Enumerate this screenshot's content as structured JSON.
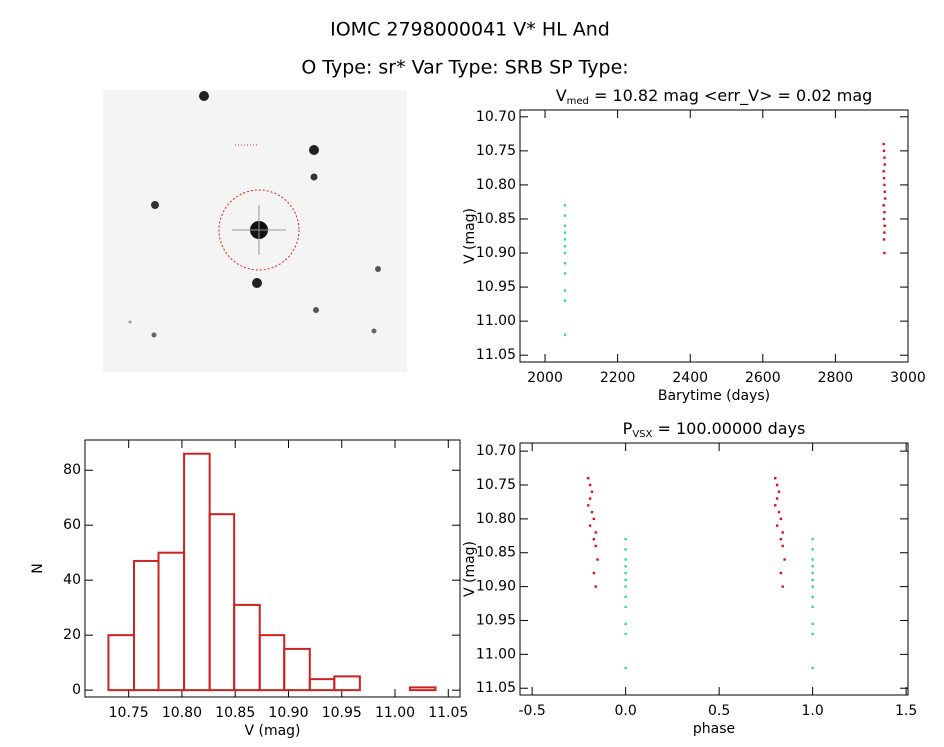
{
  "header": {
    "title": "IOMC 2798000041   V* HL And",
    "subtitle": "O Type: sr*  Var Type: SRB  SP Type:"
  },
  "chart_data": [
    {
      "type": "scatter",
      "title": [
        "V",
        "med",
        " = 10.82 mag <err_V> = 0.02 mag"
      ],
      "xlabel": "Barytime (days)",
      "ylabel": "V (mag)",
      "xlim": [
        1931,
        3000
      ],
      "xticks": [
        2000,
        2200,
        2400,
        2600,
        2800,
        3000
      ],
      "ylim": [
        11.06,
        10.69
      ],
      "yticks": [
        {
          "value": 10.7,
          "label": "10.70"
        },
        10.75,
        {
          "value": 10.8,
          "label": "10.80"
        },
        10.85,
        {
          "value": 10.9,
          "label": "10.90"
        },
        10.95,
        {
          "value": 11.0,
          "label": "11.00"
        },
        11.05
      ],
      "series": [
        {
          "color": "#33dd88",
          "x": [
            2055,
            2055,
            2055,
            2055,
            2055,
            2055,
            2055,
            2055,
            2055,
            2055,
            2055,
            2055
          ],
          "values": [
            10.83,
            10.845,
            10.86,
            10.87,
            10.88,
            10.89,
            10.9,
            10.915,
            10.93,
            10.955,
            10.97,
            11.02
          ]
        },
        {
          "color": "#dd1111",
          "x": [
            2933,
            2934,
            2935,
            2936,
            2933,
            2934,
            2935,
            2936,
            2937,
            2933,
            2935,
            2934,
            2936,
            2935,
            2934,
            2935
          ],
          "values": [
            10.74,
            10.75,
            10.76,
            10.77,
            10.78,
            10.79,
            10.8,
            10.81,
            10.82,
            10.83,
            10.84,
            10.85,
            10.86,
            10.87,
            10.88,
            10.9
          ]
        }
      ]
    },
    {
      "type": "scatter",
      "title": [
        "P",
        "VSX",
        " = 100.00000 days"
      ],
      "xlabel": "phase",
      "ylabel": "V (mag)",
      "xlim": [
        -0.565,
        1.51
      ],
      "xticks": [
        -0.5,
        {
          "value": 0.0,
          "label": "0.0"
        },
        0.5,
        {
          "value": 1.0,
          "label": "1.0"
        },
        1.5
      ],
      "ylim": [
        11.06,
        10.688
      ],
      "yticks": [
        {
          "value": 10.7,
          "label": "10.70"
        },
        10.75,
        {
          "value": 10.8,
          "label": "10.80"
        },
        10.85,
        {
          "value": 10.9,
          "label": "10.90"
        },
        10.95,
        {
          "value": 11.0,
          "label": "11.00"
        },
        11.05
      ],
      "series": [
        {
          "color": "#33dd88",
          "x": [
            0,
            0,
            0,
            0,
            0,
            0,
            0,
            0,
            0,
            0,
            0,
            0,
            1,
            1,
            1,
            1,
            1,
            1,
            1,
            1,
            1,
            1,
            1,
            1
          ],
          "values": [
            10.83,
            10.845,
            10.86,
            10.87,
            10.88,
            10.89,
            10.9,
            10.915,
            10.93,
            10.955,
            10.97,
            11.02,
            10.83,
            10.845,
            10.86,
            10.87,
            10.88,
            10.89,
            10.9,
            10.915,
            10.93,
            10.955,
            10.97,
            11.02
          ]
        },
        {
          "color": "#dd1111",
          "x": [
            -0.2,
            -0.19,
            -0.18,
            -0.19,
            -0.2,
            -0.18,
            -0.17,
            -0.19,
            -0.16,
            -0.17,
            -0.16,
            -0.15,
            -0.17,
            -0.16,
            0.8,
            0.81,
            0.82,
            0.81,
            0.8,
            0.82,
            0.83,
            0.81,
            0.84,
            0.83,
            0.84,
            0.85,
            0.83,
            0.84
          ],
          "values": [
            10.74,
            10.75,
            10.76,
            10.77,
            10.78,
            10.79,
            10.8,
            10.81,
            10.82,
            10.83,
            10.84,
            10.86,
            10.88,
            10.9,
            10.74,
            10.75,
            10.76,
            10.77,
            10.78,
            10.79,
            10.8,
            10.81,
            10.82,
            10.83,
            10.84,
            10.86,
            10.88,
            10.9
          ]
        }
      ]
    },
    {
      "type": "histogram",
      "xlabel": "V (mag)",
      "ylabel": "N",
      "color": "#cc2222",
      "bins": [
        10.731,
        10.755,
        10.778,
        10.802,
        10.826,
        10.849,
        10.873,
        10.896,
        10.92,
        10.943,
        10.967,
        10.991,
        11.014,
        11.038
      ],
      "values": [
        20,
        47,
        50,
        86,
        64,
        31,
        20,
        15,
        4,
        5,
        0,
        0,
        1
      ],
      "xlim": [
        10.709,
        11.061
      ],
      "xticks": [
        10.75,
        {
          "value": 10.8,
          "label": "10.80"
        },
        10.85,
        {
          "value": 10.9,
          "label": "10.90"
        },
        10.95,
        {
          "value": 11.0,
          "label": "11.00"
        },
        11.05
      ],
      "ylim": [
        -2.5,
        91
      ],
      "yticks": [
        0,
        20,
        40,
        60,
        80
      ]
    }
  ]
}
